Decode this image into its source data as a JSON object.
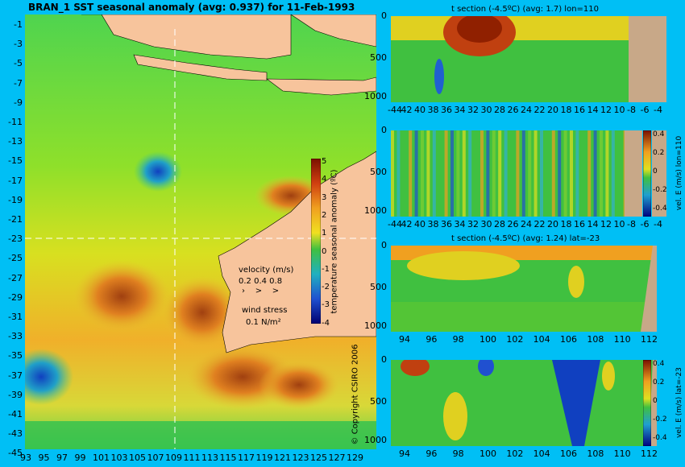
{
  "colors": {
    "background": "#00bff5",
    "land": "#f7c49c",
    "sandy": "#c8a888",
    "grid": "#ffffff"
  },
  "main_map": {
    "title": "BRAN_1 SST seasonal anomaly (avg: 0.937) for 11-Feb-1993",
    "lat_ticks": [
      "-1",
      "-3",
      "-5",
      "-7",
      "-9",
      "-11",
      "-13",
      "-15",
      "-17",
      "-19",
      "-21",
      "-23",
      "-25",
      "-27",
      "-29",
      "-31",
      "-33",
      "-35",
      "-37",
      "-39",
      "-41",
      "-43",
      "-45"
    ],
    "lon_ticks": [
      "93",
      "95",
      "97",
      "99",
      "101",
      "103",
      "105",
      "107",
      "109",
      "111",
      "113",
      "115",
      "117",
      "119",
      "121",
      "123",
      "125",
      "127",
      "129"
    ],
    "colorbar": {
      "label": "temperature seasonal anomaly (ºC)",
      "ticks": [
        "5",
        "4",
        "3",
        "2",
        "1",
        "0",
        "-1",
        "-2",
        "-3",
        "-4"
      ]
    },
    "velocity_legend": {
      "title": "velocity (m/s)",
      "values": "0.2 0.4 0.8",
      "wind_title": "wind stress",
      "wind_value": "0.1 N/m²"
    },
    "copyright": "© Copyright CSIRO 2006"
  },
  "panels": [
    {
      "id": "t-section-lon",
      "title": "t section (-4.5ºC) (avg: 1.7) lon=110",
      "x_ticks": [
        "-44",
        "42",
        "40",
        "38",
        "36",
        "34",
        "32",
        "30",
        "28",
        "26",
        "24",
        "22",
        "20",
        "18",
        "16",
        "14",
        "12",
        "10",
        "-8",
        "-6",
        "-4"
      ],
      "y_ticks": [
        "0",
        "500",
        "1000"
      ]
    },
    {
      "id": "vel-section-lon",
      "title": "",
      "x_ticks": [
        "-44",
        "42",
        "40",
        "38",
        "36",
        "34",
        "32",
        "30",
        "28",
        "26",
        "24",
        "22",
        "20",
        "18",
        "16",
        "14",
        "12",
        "10",
        "-8",
        "-6",
        "-4"
      ],
      "y_ticks": [
        "0",
        "500",
        "1000"
      ],
      "colorbar": {
        "label": "vel. E (m/s) lon=110",
        "ticks": [
          "0.4",
          "0.2",
          "0",
          "-0.2",
          "-0.4"
        ]
      }
    },
    {
      "id": "t-section-lat",
      "title": "t section (-4.5ºC) (avg: 1.24) lat=-23",
      "x_ticks": [
        "94",
        "96",
        "98",
        "100",
        "102",
        "104",
        "106",
        "108",
        "110",
        "112"
      ],
      "y_ticks": [
        "0",
        "500",
        "1000"
      ]
    },
    {
      "id": "vel-section-lat",
      "title": "",
      "x_ticks": [
        "94",
        "96",
        "98",
        "100",
        "102",
        "104",
        "106",
        "108",
        "110",
        "112"
      ],
      "y_ticks": [
        "0",
        "500",
        "1000"
      ],
      "colorbar": {
        "label": "vel. E (m/s) lat=-23",
        "ticks": [
          "0.4",
          "0.2",
          "0",
          "-0.2",
          "-0.4"
        ]
      }
    }
  ]
}
